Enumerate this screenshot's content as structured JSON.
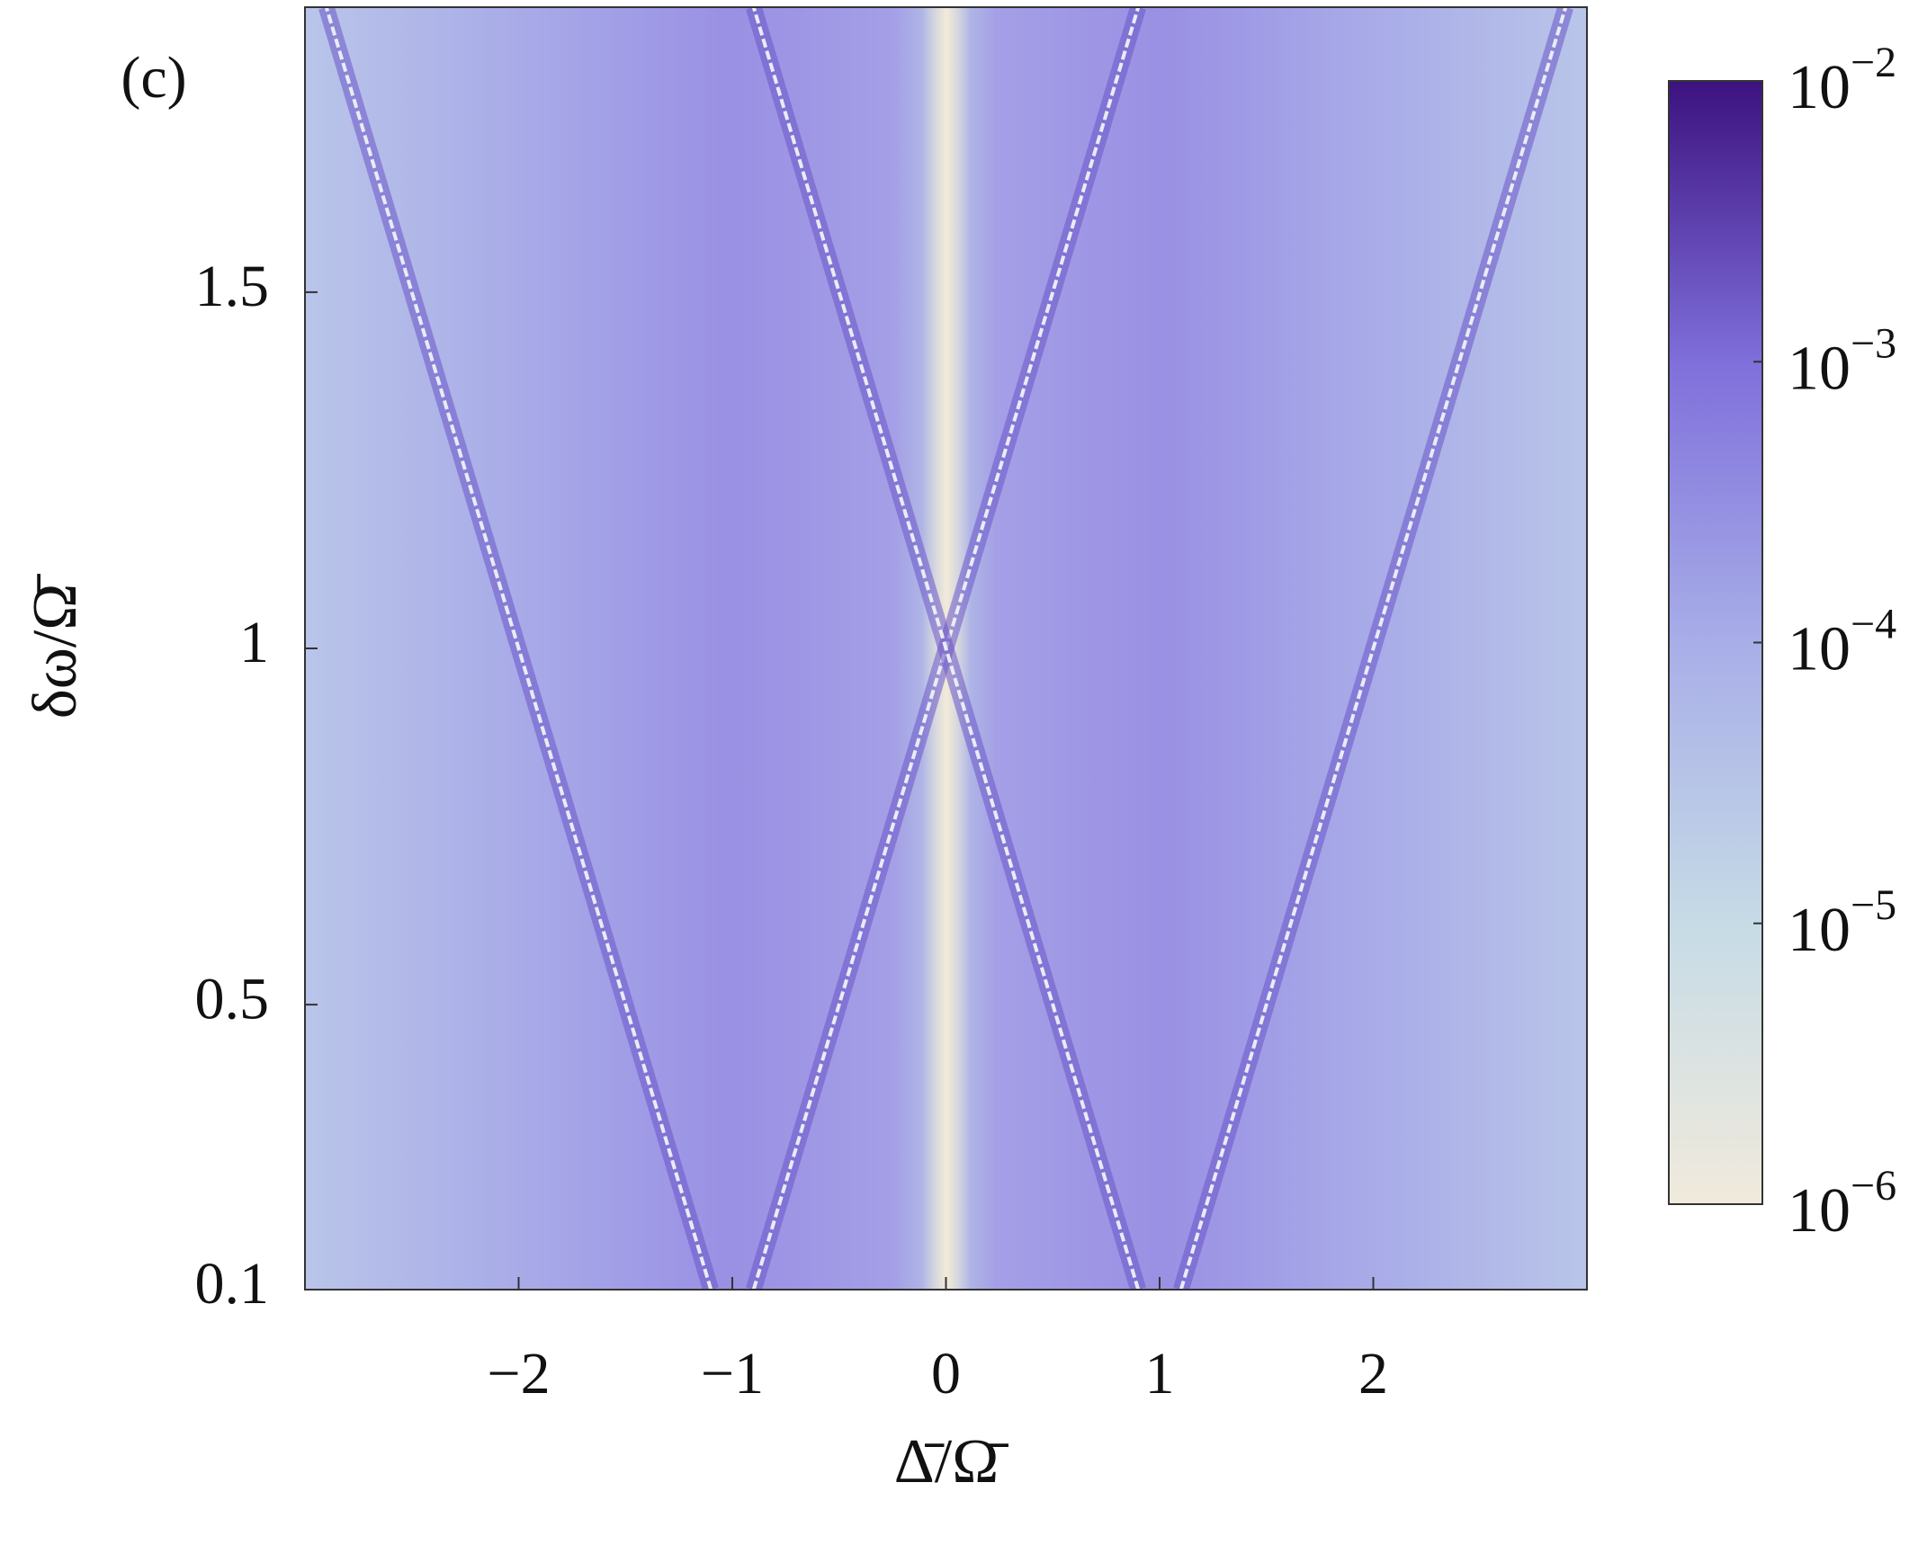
{
  "chart_data": {
    "type": "heatmap",
    "panel_label": "(c)",
    "x_label": "Δ̄/Ω̄",
    "y_label": "δω/Ω̄",
    "xlim": [
      -3,
      3
    ],
    "ylim": [
      0.1,
      1.9
    ],
    "xticks": [
      {
        "value": -2,
        "label": "−2"
      },
      {
        "value": -1,
        "label": "−1"
      },
      0,
      1,
      2
    ],
    "yticks": [
      0.1,
      0.5,
      1,
      1.5
    ],
    "lines": [
      {
        "x": [
          -1.1,
          -2.9
        ],
        "y": [
          0.1,
          1.9
        ]
      },
      {
        "x": [
          -0.9,
          0.9
        ],
        "y": [
          0.1,
          1.9
        ]
      },
      {
        "x": [
          0.9,
          -0.9
        ],
        "y": [
          0.1,
          1.9
        ]
      },
      {
        "x": [
          1.1,
          2.9
        ],
        "y": [
          0.1,
          1.9
        ]
      }
    ],
    "colorbar": {
      "log": true,
      "lim": [
        1e-06,
        0.01
      ],
      "colormap": [
        "#f1eadc",
        "#c6dbe6",
        "#a8aee8",
        "#7f6fdb",
        "#3c127f"
      ],
      "ticks": [
        {
          "value": 0.01,
          "label": "10^−2"
        },
        {
          "value": 0.001,
          "label": "10^−3"
        },
        {
          "value": 0.0001,
          "label": "10^−4"
        },
        {
          "value": 1e-05,
          "label": "10^−5"
        },
        {
          "value": 1e-06,
          "label": "10^−6"
        }
      ]
    }
  }
}
